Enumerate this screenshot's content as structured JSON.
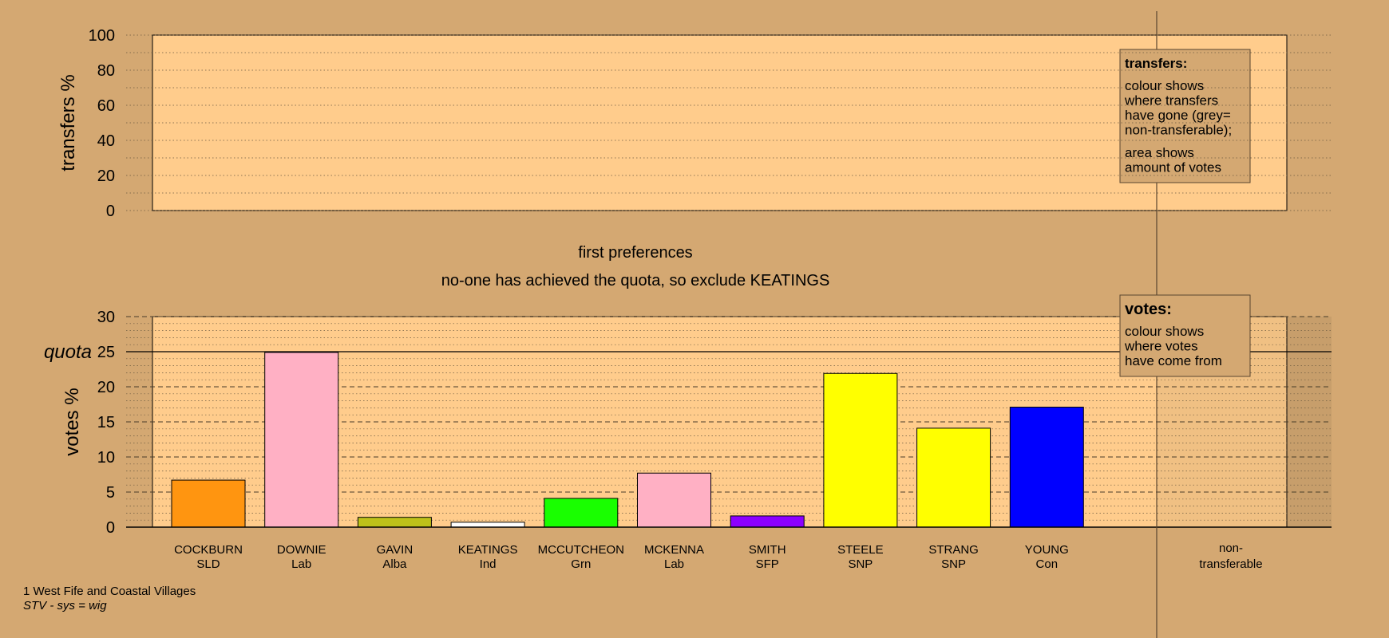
{
  "colors": {
    "page_bg": "#D4A872",
    "plot_bg": "#FFCC8C",
    "legend_bg": "#D4A872"
  },
  "chart_data": [
    {
      "type": "bar",
      "panel": "transfers",
      "ylabel": "transfers %",
      "ylim": [
        0,
        100
      ],
      "yticks": [
        0,
        20,
        40,
        60,
        80,
        100
      ],
      "grid": "dotted",
      "series": [],
      "legend": {
        "position": "top-right",
        "title": "transfers:",
        "lines1": [
          "colour shows",
          "where transfers",
          "have gone (grey=",
          "non-transferable);"
        ],
        "lines2": [
          "area shows",
          "amount of votes"
        ]
      }
    },
    {
      "type": "bar",
      "panel": "votes",
      "title": "first preferences",
      "subtitle": "no-one has achieved the quota, so exclude KEATINGS",
      "ylabel": "votes %",
      "ylim": [
        0,
        30
      ],
      "yticks": [
        0,
        5,
        10,
        15,
        20,
        25,
        30
      ],
      "quota": 25,
      "quota_label": "quota",
      "grid": "dashed",
      "categories": [
        {
          "name": "COCKBURN",
          "party": "SLD"
        },
        {
          "name": "DOWNIE",
          "party": "Lab"
        },
        {
          "name": "GAVIN",
          "party": "Alba"
        },
        {
          "name": "KEATINGS",
          "party": "Ind"
        },
        {
          "name": "MCCUTCHEON",
          "party": "Grn"
        },
        {
          "name": "MCKENNA",
          "party": "Lab"
        },
        {
          "name": "SMITH",
          "party": "SFP"
        },
        {
          "name": "STEELE",
          "party": "SNP"
        },
        {
          "name": "STRANG",
          "party": "SNP"
        },
        {
          "name": "YOUNG",
          "party": "Con"
        }
      ],
      "values": [
        6.7,
        24.9,
        1.4,
        0.7,
        4.1,
        7.7,
        1.6,
        21.9,
        14.1,
        17.1
      ],
      "bar_colors": [
        "#FF9510",
        "#FFB0C4",
        "#BEC21A",
        "#FFFFFF",
        "#19FF00",
        "#FFB0C4",
        "#8C00FF",
        "#FFFF00",
        "#FFFF00",
        "#0000FF"
      ],
      "extra_category": {
        "line1": "non-",
        "line2": "transferable"
      },
      "legend": {
        "position": "top-right",
        "title": "votes:",
        "lines": [
          "colour shows",
          "where votes",
          "have come from"
        ]
      }
    }
  ],
  "footer": {
    "line1": "1 West Fife and Coastal Villages",
    "line2": "STV - sys = wig"
  }
}
